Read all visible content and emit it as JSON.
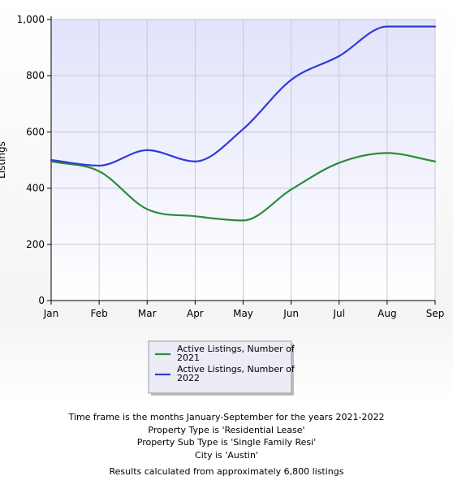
{
  "chart_data": {
    "type": "line",
    "ylabel": "Listings",
    "categories": [
      "Jan",
      "Feb",
      "Mar",
      "Apr",
      "May",
      "Jun",
      "Jul",
      "Aug",
      "Sep"
    ],
    "ylim": [
      0,
      1000
    ],
    "yticks": [
      0,
      200,
      400,
      600,
      800,
      1000
    ],
    "ytick_labels": [
      "0",
      "200",
      "400",
      "600",
      "800",
      "1,000"
    ],
    "grid": true,
    "legend_position": "bottom-center",
    "series": [
      {
        "name": "Active Listings, Number of 2021",
        "legend_lines": [
          "Active Listings, Number of",
          "2021"
        ],
        "color": "#2e8b3a",
        "values": [
          495,
          460,
          325,
          300,
          285,
          395,
          490,
          525,
          495
        ]
      },
      {
        "name": "Active Listings, Number of 2022",
        "legend_lines": [
          "Active Listings, Number of",
          "2022"
        ],
        "color": "#2f3bd6",
        "values": [
          500,
          480,
          535,
          495,
          610,
          785,
          870,
          975,
          975
        ]
      }
    ]
  },
  "footer": {
    "timeframe": "Time frame is the months January-September for the years 2021-2022",
    "property_type": "Property Type is 'Residential Lease'",
    "property_sub_type": "Property Sub Type is 'Single Family Resi'",
    "city": "City is 'Austin'",
    "results": "Results calculated from approximately 6,800 listings"
  }
}
